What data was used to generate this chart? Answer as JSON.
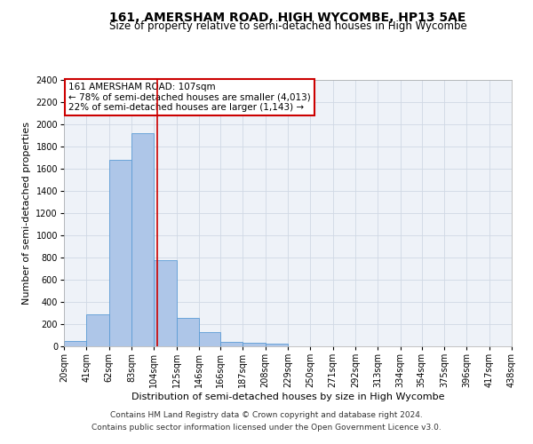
{
  "title": "161, AMERSHAM ROAD, HIGH WYCOMBE, HP13 5AE",
  "subtitle": "Size of property relative to semi-detached houses in High Wycombe",
  "xlabel": "Distribution of semi-detached houses by size in High Wycombe",
  "ylabel": "Number of semi-detached properties",
  "footer_line1": "Contains HM Land Registry data © Crown copyright and database right 2024.",
  "footer_line2": "Contains public sector information licensed under the Open Government Licence v3.0.",
  "annotation_title": "161 AMERSHAM ROAD: 107sqm",
  "annotation_line1": "← 78% of semi-detached houses are smaller (4,013)",
  "annotation_line2": "22% of semi-detached houses are larger (1,143) →",
  "property_size": 107,
  "bar_edges": [
    20,
    41,
    62,
    83,
    104,
    125,
    146,
    166,
    187,
    208,
    229,
    250,
    271,
    292,
    313,
    334,
    354,
    375,
    396,
    417,
    438
  ],
  "bar_values": [
    50,
    290,
    1680,
    1920,
    780,
    255,
    125,
    40,
    30,
    25,
    0,
    0,
    0,
    0,
    0,
    0,
    0,
    0,
    0,
    0
  ],
  "bar_color": "#aec6e8",
  "bar_edge_color": "#5b9bd5",
  "vline_color": "#cc0000",
  "ylim": [
    0,
    2400
  ],
  "yticks": [
    0,
    200,
    400,
    600,
    800,
    1000,
    1200,
    1400,
    1600,
    1800,
    2000,
    2200,
    2400
  ],
  "grid_color": "#d0d8e4",
  "background_color": "#eef2f8",
  "title_fontsize": 10,
  "subtitle_fontsize": 8.5,
  "axis_label_fontsize": 8,
  "tick_fontsize": 7,
  "annotation_fontsize": 7.5,
  "footer_fontsize": 6.5
}
